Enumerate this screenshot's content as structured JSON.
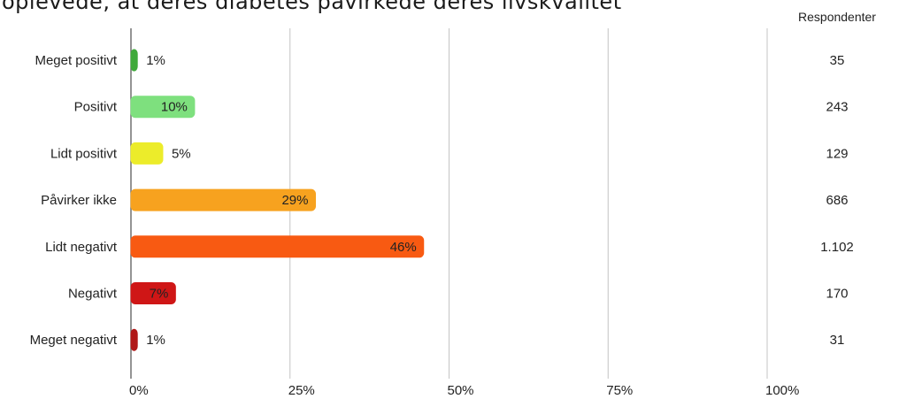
{
  "title": "oplevede, at deres diabetes påvirkede deres livskvalitet",
  "chart_data": {
    "type": "bar",
    "orientation": "horizontal",
    "categories": [
      "Meget positivt",
      "Positivt",
      "Lidt positivt",
      "Påvirker ikke",
      "Lidt negativt",
      "Negativt",
      "Meget negativt"
    ],
    "values": [
      1,
      10,
      5,
      29,
      46,
      7,
      1
    ],
    "value_labels": [
      "1%",
      "10%",
      "5%",
      "29%",
      "46%",
      "7%",
      "1%"
    ],
    "colors": [
      "#3fa93a",
      "#7ee07e",
      "#ecec2a",
      "#f7a21f",
      "#f85a12",
      "#cf1616",
      "#b01818"
    ],
    "xlim": [
      0,
      100
    ],
    "xticks": [
      0,
      25,
      50,
      75,
      100
    ],
    "xtick_labels": [
      "0%",
      "25%",
      "50%",
      "75%",
      "100%"
    ],
    "grid": true,
    "respondents_header": "Respondenter",
    "respondents": [
      "35",
      "243",
      "129",
      "686",
      "1.102",
      "170",
      "31"
    ]
  }
}
